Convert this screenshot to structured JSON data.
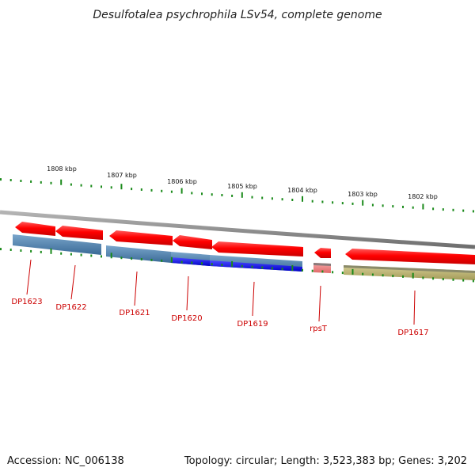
{
  "title": "Desulfotalea psychrophila LSv54, complete genome",
  "footer": {
    "accession": "Accession: NC_006138",
    "summary": "Topology: circular; Length: 3,523,383 bp; Genes: 3,202"
  },
  "ruler_labels": [
    "1808 kbp",
    "1807 kbp",
    "1806 kbp",
    "1805 kbp",
    "1804 kbp",
    "1803 kbp",
    "1802 kbp"
  ],
  "gene_labels": [
    "DP1623",
    "DP1622",
    "DP1621",
    "DP1620",
    "DP1619",
    "rpsT",
    "DP1617"
  ],
  "colors": {
    "backbone": "#8a8a8a",
    "cds_red": "#ff0000",
    "cds_pink": "#f08080",
    "feature_steel": "#4a82b4",
    "feature_blue": "#1a1aee",
    "feature_olive": "#b8b070",
    "tick_green": "#1a8a1a",
    "label_red": "#cc0000"
  }
}
